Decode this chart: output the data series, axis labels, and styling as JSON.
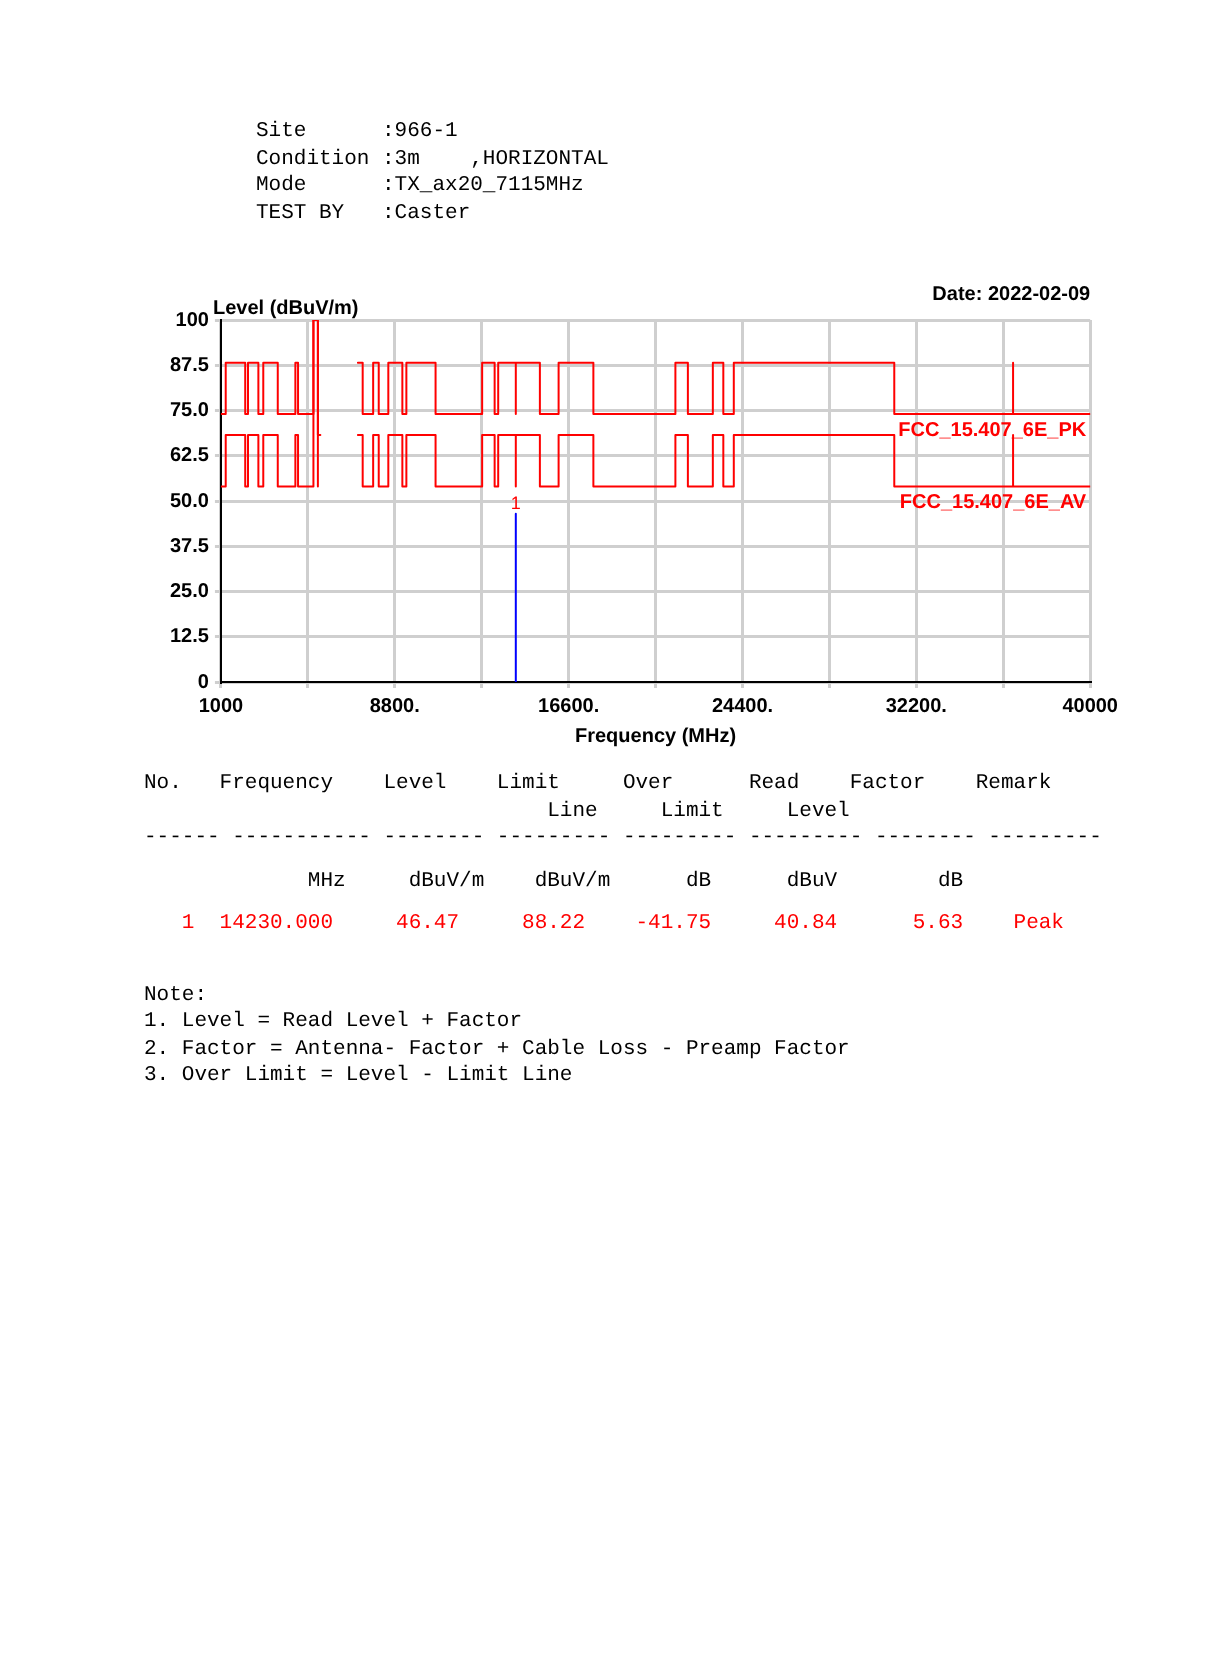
{
  "chart_data": {
    "type": "step",
    "xlabel": "Frequency (MHz)",
    "ylabel": "Level (dBuV/m)",
    "xlim": [
      1000,
      40000
    ],
    "xticks": [
      1000,
      {
        "value": 4900,
        "label": null
      },
      {
        "value": 8800,
        "label": "8800."
      },
      {
        "value": 12700,
        "label": null
      },
      {
        "value": 16600,
        "label": "16600."
      },
      {
        "value": 20500,
        "label": null
      },
      {
        "value": 24400,
        "label": "24400."
      },
      {
        "value": 28300,
        "label": null
      },
      {
        "value": 32200,
        "label": "32200."
      },
      {
        "value": 36100,
        "label": null
      },
      40000
    ],
    "ylim": [
      0,
      100
    ],
    "yticks": [
      0,
      {
        "value": 12.5,
        "label": "12.5"
      },
      {
        "value": 25,
        "label": "25.0"
      },
      {
        "value": 37.5,
        "label": "37.5"
      },
      {
        "value": 50,
        "label": "50.0"
      },
      {
        "value": 62.5,
        "label": "62.5"
      },
      {
        "value": 75,
        "label": "75.0"
      },
      {
        "value": 87.5,
        "label": "87.5"
      },
      100
    ],
    "grid": true,
    "legend": false,
    "marker": "none",
    "line_style": "solid",
    "series": [
      {
        "name": "FCC_15.407_6E_PK",
        "color": "#ff0000",
        "type": "step",
        "x": [
          1000,
          1215,
          2090,
          2215,
          2680,
          2900,
          3550,
          4340,
          4460,
          5150,
          5350,
          5460,
          5500,
          7145,
          7360,
          7830,
          8080,
          8510,
          9140,
          9320,
          10630,
          12720,
          13280,
          13440,
          14230,
          14230,
          15310,
          16150,
          17710,
          21390,
          21950,
          23070,
          23540,
          24010,
          31210,
          36540,
          36540,
          40000
        ],
        "values": [
          74,
          88.22,
          74,
          88.22,
          74,
          88.22,
          74,
          88.22,
          74,
          100,
          68.2,
          68.2,
          null,
          88.22,
          74,
          88.22,
          74,
          88.22,
          74,
          88.22,
          74,
          88.22,
          74,
          88.22,
          74,
          88.22,
          74,
          88.22,
          74,
          88.22,
          74,
          88.22,
          74,
          88.22,
          74,
          88.22,
          74,
          74
        ]
      },
      {
        "name": "FCC_15.407_6E_AV",
        "color": "#ff0000",
        "type": "step",
        "x": [
          1000,
          1215,
          2090,
          2215,
          2680,
          2900,
          3550,
          4340,
          4460,
          5150,
          5350,
          5460,
          5500,
          7145,
          7360,
          7830,
          8080,
          8510,
          9140,
          9320,
          10630,
          12720,
          13280,
          13440,
          14230,
          14230,
          15310,
          16150,
          17710,
          21390,
          21950,
          23070,
          23540,
          24010,
          31210,
          36540,
          36540,
          40000
        ],
        "values": [
          54,
          68.2,
          54,
          68.2,
          54,
          68.2,
          54,
          68.2,
          54,
          100,
          54,
          null,
          null,
          68.2,
          54,
          68.2,
          54,
          68.2,
          54,
          68.2,
          54,
          68.2,
          54,
          68.2,
          54,
          68.2,
          54,
          68.2,
          54,
          68.2,
          54,
          68.2,
          54,
          68.2,
          54,
          68.2,
          54,
          54
        ]
      },
      {
        "color": "#0000ff",
        "type": "line",
        "x": [
          14230,
          14230
        ],
        "values": [
          0,
          46.47
        ]
      }
    ],
    "annotations": [
      "Site      :966-1",
      "Condition :3m    ,HORIZONTAL",
      "Mode      :TX_ax20_7115MHz",
      "TEST BY   :Caster",
      "Date: 2022-02-09",
      "No.   Frequency    Level    Limit     Over      Read    Factor    Remark",
      "                                Line     Limit     Level",
      "------ ----------- -------- --------- --------- --------- -------- ---------",
      "             MHz     dBuV/m    dBuV/m      dB      dBuV        dB",
      "   1  14230.000     46.47     88.22    -41.75     40.84      5.63    Peak",
      "Note:",
      "1. Level = Read Level + Factor",
      "2. Factor = Antenna- Factor + Cable Loss - Preamp Factor",
      "3. Over Limit = Level - Limit Line",
      {
        "text": "1",
        "x": 14230,
        "y": 46.47
      }
    ]
  }
}
